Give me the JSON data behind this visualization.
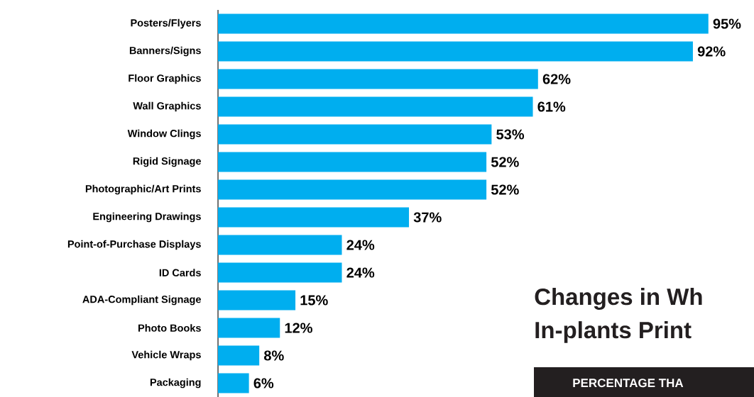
{
  "chart_data": {
    "type": "bar",
    "orientation": "horizontal",
    "categories": [
      "Posters/Flyers",
      "Banners/Signs",
      "Floor Graphics",
      "Wall Graphics",
      "Window Clings",
      "Rigid Signage",
      "Photographic/Art Prints",
      "Engineering Drawings",
      "Point-of-Purchase Displays",
      "ID Cards",
      "ADA-Compliant Signage",
      "Photo Books",
      "Vehicle Wraps",
      "Packaging"
    ],
    "values": [
      95,
      92,
      62,
      61,
      53,
      52,
      52,
      37,
      24,
      24,
      15,
      12,
      8,
      6
    ],
    "value_labels": [
      "95%",
      "92%",
      "62%",
      "61%",
      "53%",
      "52%",
      "52%",
      "37%",
      "24%",
      "24%",
      "15%",
      "12%",
      "8%",
      "6%"
    ],
    "color": "#00aeef",
    "annotations": [
      "Changes in Wh",
      "In-plants Print",
      "PERCENTAGE THA"
    ]
  }
}
